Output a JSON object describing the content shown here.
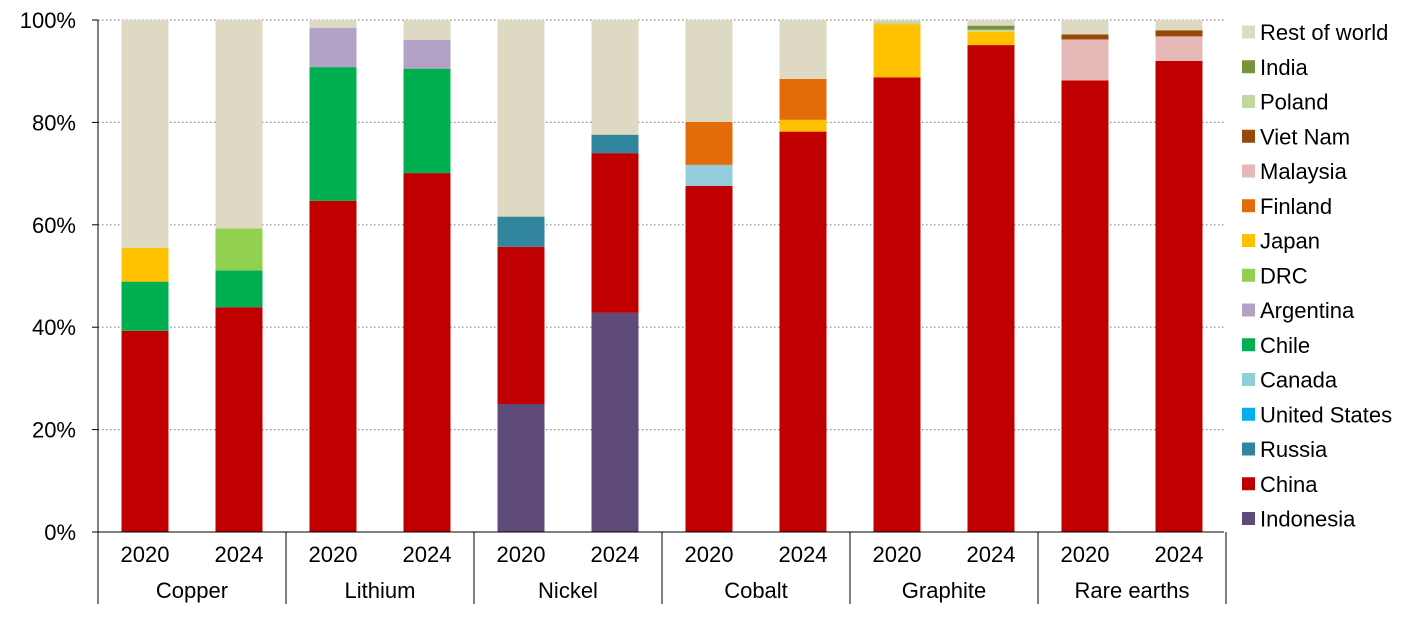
{
  "chart_data": {
    "type": "bar",
    "stacked": true,
    "title": "",
    "xlabel": "",
    "ylabel": "",
    "ylim": [
      0,
      100
    ],
    "y_ticks": [
      0,
      20,
      40,
      60,
      80,
      100
    ],
    "y_tick_labels": [
      "0%",
      "20%",
      "40%",
      "60%",
      "80%",
      "100%"
    ],
    "grid": "horizontal dotted",
    "legend_position": "right",
    "groups": [
      "Copper",
      "Lithium",
      "Nickel",
      "Cobalt",
      "Graphite",
      "Rare earths"
    ],
    "categories": [
      "2020",
      "2024",
      "2020",
      "2024",
      "2020",
      "2024",
      "2020",
      "2024",
      "2020",
      "2024",
      "2020",
      "2024"
    ],
    "series": [
      {
        "name": "Indonesia",
        "color": "#5e4b7a",
        "values": [
          0,
          0,
          0,
          0,
          25,
          42.8,
          0,
          0,
          0,
          0,
          0,
          0
        ]
      },
      {
        "name": "China",
        "color": "#c00000",
        "values": [
          39.3,
          43.9,
          64.7,
          70.1,
          30.7,
          31.2,
          67.6,
          78.2,
          88.8,
          95.1,
          88.2,
          92.0
        ]
      },
      {
        "name": "Russia",
        "color": "#31859c",
        "values": [
          0,
          0,
          0,
          0,
          5.9,
          3.6,
          0,
          0,
          0,
          0,
          0,
          0
        ]
      },
      {
        "name": "United States",
        "color": "#00b0f0",
        "values": [
          0,
          0,
          0,
          0,
          0,
          0,
          0,
          0,
          0,
          0,
          0,
          0
        ]
      },
      {
        "name": "Canada",
        "color": "#92cddc",
        "values": [
          0,
          0,
          0,
          0,
          0,
          0,
          4.1,
          0,
          0,
          0,
          0,
          0
        ]
      },
      {
        "name": "Chile",
        "color": "#00b050",
        "values": [
          9.6,
          7.2,
          26.1,
          20.4,
          0,
          0,
          0,
          0,
          0,
          0,
          0,
          0
        ]
      },
      {
        "name": "Argentina",
        "color": "#b3a2c7",
        "values": [
          0,
          0,
          7.7,
          5.6,
          0,
          0,
          0,
          0,
          0,
          0,
          0,
          0
        ]
      },
      {
        "name": "DRC",
        "color": "#92d050",
        "values": [
          0,
          8.2,
          0,
          0,
          0,
          0,
          0,
          0,
          0,
          0,
          0,
          0
        ]
      },
      {
        "name": "Japan",
        "color": "#ffc000",
        "values": [
          6.6,
          0,
          0,
          0,
          0,
          0,
          0,
          2.3,
          10.4,
          2.6,
          0,
          0
        ]
      },
      {
        "name": "Finland",
        "color": "#e36c09",
        "values": [
          0,
          0,
          0,
          0,
          0,
          0,
          8.4,
          8.0,
          0,
          0,
          0,
          0
        ]
      },
      {
        "name": "Malaysia",
        "color": "#e6b9b8",
        "values": [
          0,
          0,
          0,
          0,
          0,
          0,
          0,
          0,
          0,
          0,
          8.0,
          4.8
        ]
      },
      {
        "name": "Viet Nam",
        "color": "#984807",
        "values": [
          0,
          0,
          0,
          0,
          0,
          0,
          0,
          0,
          0,
          0,
          1.0,
          1.2
        ]
      },
      {
        "name": "Poland",
        "color": "#c4d79b",
        "values": [
          0,
          0,
          0,
          0,
          0,
          0,
          0,
          0,
          0.5,
          0.4,
          0,
          0
        ]
      },
      {
        "name": "India",
        "color": "#77933c",
        "values": [
          0,
          0,
          0,
          0,
          0,
          0,
          0,
          0,
          0,
          0.8,
          0,
          0
        ]
      },
      {
        "name": "Rest of world",
        "color": "#ddd9c3",
        "values": [
          44.5,
          40.7,
          1.5,
          3.9,
          38.4,
          22.4,
          19.9,
          11.5,
          0.3,
          1.1,
          2.8,
          2.0
        ]
      }
    ]
  }
}
